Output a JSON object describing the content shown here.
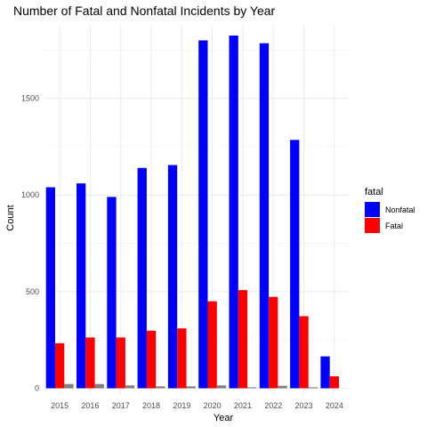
{
  "chart_data": {
    "type": "bar",
    "title": "Number of Fatal and Nonfatal Incidents by Year",
    "xlabel": "Year",
    "ylabel": "Count",
    "ylim": [
      -30,
      1880
    ],
    "yticks": [
      0,
      500,
      1000,
      1500
    ],
    "categories": [
      "2015",
      "2016",
      "2017",
      "2018",
      "2019",
      "2020",
      "2021",
      "2022",
      "2023",
      "2024"
    ],
    "series": [
      {
        "name": "Nonfatal",
        "color": "#0000ff",
        "values": [
          1040,
          1060,
          990,
          1140,
          1155,
          1800,
          1825,
          1785,
          1285,
          165
        ]
      },
      {
        "name": "Fatal",
        "color": "#ff0000",
        "values": [
          233,
          263,
          263,
          298,
          310,
          450,
          508,
          473,
          373,
          62
        ]
      },
      {
        "name": "",
        "color": "#808080",
        "values": [
          22,
          22,
          15,
          10,
          10,
          15,
          5,
          13,
          5,
          0
        ]
      }
    ],
    "legend": {
      "title": "fatal",
      "position": "right"
    },
    "grid": true
  }
}
